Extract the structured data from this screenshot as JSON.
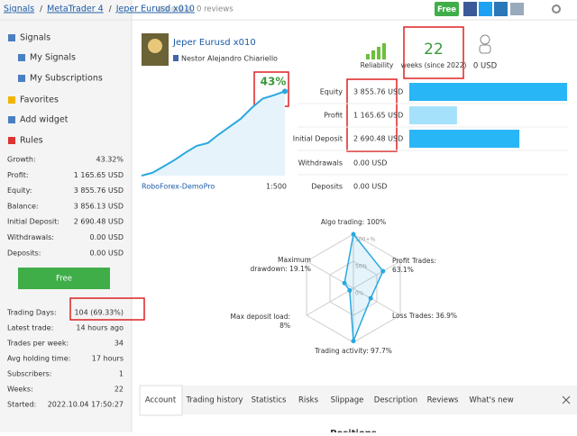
{
  "header": {
    "breadcrumb": [
      "Signals",
      "MetaTrader 4",
      "Jeper Eurusd x010"
    ],
    "separator": "/",
    "reviews": "0 reviews",
    "button": "Free"
  },
  "sidebar": {
    "menu": [
      "Signals",
      "My Signals",
      "My Subscriptions",
      "Favorites",
      "Add widget",
      "Rules"
    ],
    "stats": [
      [
        "Growth:",
        "43.32%"
      ],
      [
        "Profit:",
        "1 165.65 USD"
      ],
      [
        "Equity:",
        "3 855.76 USD"
      ],
      [
        "Balance:",
        "3 856.13 USD"
      ],
      [
        "Initial Deposit:",
        "2 690.48 USD"
      ],
      [
        "Withdrawals:",
        "0.00 USD"
      ],
      [
        "Deposits:",
        "0.00 USD"
      ]
    ],
    "button": "Free",
    "details": [
      [
        "Trading Days:",
        "104 (69.33%)"
      ],
      [
        "Latest trade:",
        "14 hours ago"
      ],
      [
        "Trades per week:",
        "34"
      ],
      [
        "Avg holding time:",
        "17 hours"
      ],
      [
        "Subscribers:",
        "1"
      ],
      [
        "Weeks:",
        "22"
      ],
      [
        "Started:",
        "2022.10.04 17:50:27"
      ]
    ]
  },
  "signal": {
    "title": "Jeper Eurusd x010",
    "author": "Nestor Alejandro Chiariello",
    "reliability": "Reliability",
    "weeks": "22",
    "weeks_label": "weeks (since 2022)",
    "price": "0 USD",
    "growth": {
      "label": "43%",
      "values": [
        0,
        1.5,
        4.7,
        8,
        11.8,
        15.2,
        16.6,
        21,
        25,
        29,
        34.6,
        39.3,
        41,
        43
      ],
      "ylim": [
        0,
        45
      ],
      "server": "RoboForex-DemoPro",
      "leverage": "1:500"
    },
    "balances": [
      {
        "name": "Equity",
        "label": "3 855.76 USD",
        "amount": 3855.76,
        "color": "#29b6f6"
      },
      {
        "name": "Profit",
        "label": "1 165.65 USD",
        "amount": 1165.65,
        "color": "#a6e1fb"
      },
      {
        "name": "Initial Deposit",
        "label": "2 690.48 USD",
        "amount": 2690.48,
        "color": "#29b6f6"
      },
      {
        "name": "Withdrawals",
        "label": "0.00 USD",
        "amount": 0,
        "color": "#29b6f6"
      },
      {
        "name": "Deposits",
        "label": "0.00 USD",
        "amount": 0,
        "color": "#29b6f6"
      }
    ],
    "radar": {
      "axes": [
        {
          "lines": [
            "Algo trading: 100%"
          ],
          "value": 100
        },
        {
          "lines": [
            "Profit Trades:",
            "63.1%"
          ],
          "value": 63.1
        },
        {
          "lines": [
            "Loss Trades: 36.9%"
          ],
          "value": 36.9
        },
        {
          "lines": [
            "Trading activity: 97.7%"
          ],
          "value": 97.7
        },
        {
          "lines": [
            "Max deposit load:",
            "8%"
          ],
          "value": 8
        },
        {
          "lines": [
            "Maximum",
            "drawdown: 19.1%"
          ],
          "value": 19.1
        }
      ],
      "ticks": [
        {
          "value": 100,
          "label": "100+%"
        },
        {
          "value": 50,
          "label": "50%"
        },
        {
          "value": 0,
          "label": "0%"
        }
      ],
      "color": "#29a8e0"
    }
  },
  "tabs": [
    "Account",
    "Trading history",
    "Statistics",
    "Risks",
    "Slippage",
    "Description",
    "Reviews",
    "What's new"
  ],
  "section": "Positions"
}
